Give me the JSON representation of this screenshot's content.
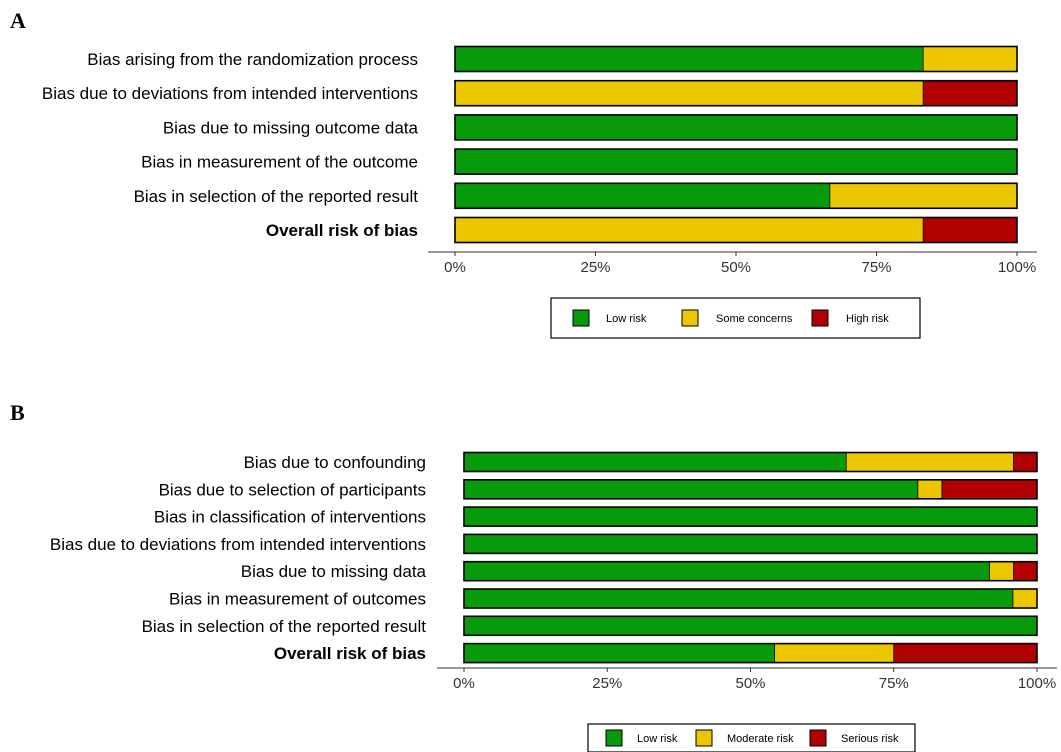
{
  "colors": {
    "low": "#079b0b",
    "mid": "#ecc700",
    "high": "#b00000"
  },
  "chart_data": [
    {
      "panel": "A",
      "type": "bar",
      "orientation": "horizontal-stacked",
      "categories": [
        "Bias arising from the randomization process",
        "Bias due to deviations from intended interventions",
        "Bias due to missing outcome data",
        "Bias in measurement of the outcome",
        "Bias in selection of the reported result",
        "Overall risk of bias"
      ],
      "bold_category": "Overall risk of bias",
      "series": [
        {
          "name": "Low risk",
          "color": "#079b0b",
          "values": [
            83.3,
            0,
            100,
            100,
            66.7,
            0
          ]
        },
        {
          "name": "Some concerns",
          "color": "#ecc700",
          "values": [
            16.7,
            83.3,
            0,
            0,
            33.3,
            83.3
          ]
        },
        {
          "name": "High risk",
          "color": "#b00000",
          "values": [
            0,
            16.7,
            0,
            0,
            0,
            16.7
          ]
        }
      ],
      "xticks": [
        "0%",
        "25%",
        "50%",
        "75%",
        "100%"
      ],
      "xlim": [
        0,
        100
      ],
      "legend_position": "bottom"
    },
    {
      "panel": "B",
      "type": "bar",
      "orientation": "horizontal-stacked",
      "categories": [
        "Bias due to confounding",
        "Bias due to selection of participants",
        "Bias in classification of interventions",
        "Bias due to deviations from intended interventions",
        "Bias due to missing data",
        "Bias in measurement of outcomes",
        "Bias in selection of the reported result",
        "Overall risk of bias"
      ],
      "bold_category": "Overall risk of bias",
      "series": [
        {
          "name": "Low risk",
          "color": "#079b0b",
          "values": [
            66.7,
            79.2,
            100,
            100,
            91.7,
            95.8,
            100,
            54.2
          ]
        },
        {
          "name": "Moderate risk",
          "color": "#ecc700",
          "values": [
            29.2,
            4.2,
            0,
            0,
            4.2,
            4.2,
            0,
            20.8
          ]
        },
        {
          "name": "Serious risk",
          "color": "#b00000",
          "values": [
            4.1,
            16.6,
            0,
            0,
            4.1,
            0,
            0,
            25
          ]
        }
      ],
      "xticks": [
        "0%",
        "25%",
        "50%",
        "75%",
        "100%"
      ],
      "xlim": [
        0,
        100
      ],
      "legend_position": "bottom"
    }
  ]
}
